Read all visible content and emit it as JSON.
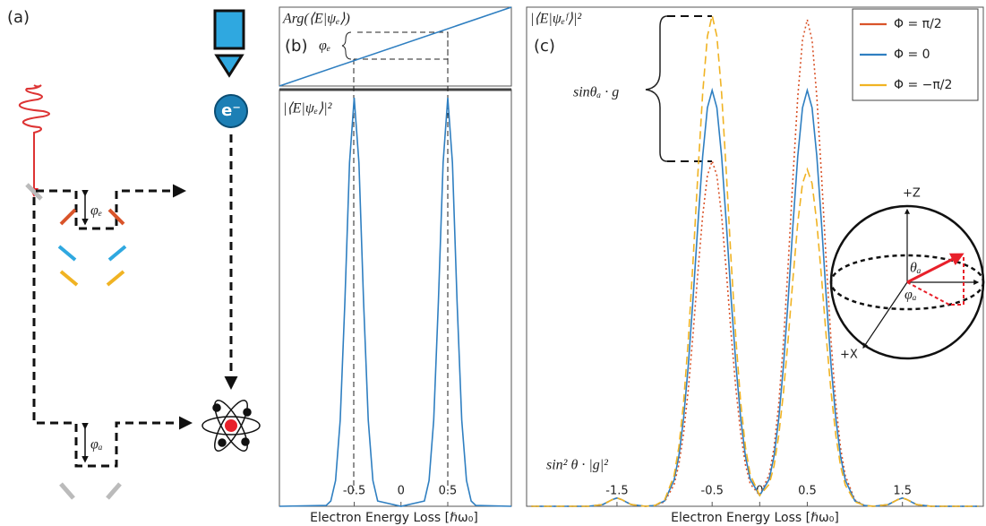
{
  "diagram": {
    "panel_label": "(a)",
    "phase_e": "φₑ",
    "phase_a": "φₐ",
    "electron": "e⁻",
    "sphere": {
      "z": "+Z",
      "x": "+X",
      "theta": "θₐ",
      "phi": "φₐ"
    }
  },
  "chart_data": [
    {
      "type": "line",
      "title": "Arg(⟨E|ψₑ⟩)",
      "panel_label": "(b)",
      "annotations": [
        "φₑ"
      ],
      "x": [
        -1.3,
        1.18
      ],
      "xlim": [
        -1.3,
        1.18
      ],
      "ylim": [
        0,
        1
      ],
      "series": [
        {
          "color": "#2f7fc1",
          "line_style": "solid",
          "values": [
            0,
            1
          ]
        }
      ]
    },
    {
      "type": "line",
      "title": "|⟨E|ψₑ⟩|²",
      "x_label": "Electron Energy Loss [ℏω₀]",
      "x": [
        -1.3,
        -0.8,
        -0.75,
        -0.7,
        -0.65,
        -0.6,
        -0.55,
        -0.5,
        -0.45,
        -0.4,
        -0.35,
        -0.3,
        -0.25,
        0,
        0.25,
        0.3,
        0.35,
        0.4,
        0.45,
        0.5,
        0.55,
        0.6,
        0.65,
        0.7,
        0.75,
        0.8,
        1.18
      ],
      "xlim": [
        -1.3,
        1.18
      ],
      "xticks": [
        -0.5,
        0,
        0.5
      ],
      "ylim": [
        0,
        1.02
      ],
      "series": [
        {
          "color": "#2f7fc1",
          "line_style": "solid",
          "values": [
            0,
            0.002,
            0.013,
            0.063,
            0.211,
            0.5,
            0.841,
            1,
            0.841,
            0.5,
            0.211,
            0.063,
            0.013,
            0,
            0.013,
            0.063,
            0.211,
            0.5,
            0.841,
            1,
            0.841,
            0.5,
            0.211,
            0.063,
            0.013,
            0.002,
            0
          ]
        }
      ]
    },
    {
      "type": "line",
      "title": "|⟨E|ψₑᶠ⟩|²",
      "panel_label": "(c)",
      "annotations": [
        "sinθₐ · g",
        "sin² θ · |g|²"
      ],
      "x_label": "Electron Energy Loss [ℏω₀]",
      "legend": "upper right",
      "x": [
        -2.4,
        -1.8,
        -1.65,
        -1.6,
        -1.55,
        -1.5,
        -1.45,
        -1.4,
        -1.35,
        -1.2,
        -1.1,
        -1.0,
        -0.9,
        -0.85,
        -0.8,
        -0.75,
        -0.7,
        -0.65,
        -0.6,
        -0.55,
        -0.5,
        -0.45,
        -0.4,
        -0.35,
        -0.3,
        -0.25,
        -0.2,
        -0.15,
        -0.1,
        0,
        0.1,
        0.15,
        0.2,
        0.25,
        0.3,
        0.35,
        0.4,
        0.45,
        0.5,
        0.55,
        0.6,
        0.65,
        0.7,
        0.75,
        0.8,
        0.85,
        0.9,
        1.0,
        1.1,
        1.2,
        1.35,
        1.4,
        1.45,
        1.5,
        1.55,
        1.6,
        1.65,
        1.8,
        2.3
      ],
      "xlim": [
        -2.45,
        2.35
      ],
      "xticks": [
        -1.5,
        -0.5,
        0,
        0.5,
        1.5
      ],
      "ylim": [
        0,
        1.2
      ],
      "series": [
        {
          "name": "Φ = π/2",
          "color": "#d9542a",
          "line_style": "dotted",
          "values": [
            0,
            0,
            0.004,
            0.01,
            0.016,
            0.02,
            0.016,
            0.01,
            0.004,
            0,
            0.002,
            0.011,
            0.052,
            0.1,
            0.175,
            0.281,
            0.415,
            0.563,
            0.698,
            0.795,
            0.83,
            0.795,
            0.698,
            0.563,
            0.415,
            0.281,
            0.175,
            0.1,
            0.054,
            0.026,
            0.076,
            0.14,
            0.247,
            0.397,
            0.585,
            0.793,
            0.984,
            1.121,
            1.17,
            1.121,
            0.984,
            0.793,
            0.585,
            0.397,
            0.247,
            0.14,
            0.074,
            0.015,
            0.002,
            0,
            0.004,
            0.01,
            0.016,
            0.02,
            0.016,
            0.01,
            0.004,
            0,
            0
          ]
        },
        {
          "name": "Φ = 0",
          "color": "#2f7fc1",
          "line_style": "solid",
          "values": [
            0,
            0,
            0.004,
            0.01,
            0.016,
            0.02,
            0.016,
            0.01,
            0.004,
            0,
            0.002,
            0.013,
            0.063,
            0.12,
            0.211,
            0.339,
            0.5,
            0.678,
            0.841,
            0.958,
            1,
            0.958,
            0.841,
            0.678,
            0.5,
            0.339,
            0.211,
            0.12,
            0.065,
            0.026,
            0.065,
            0.12,
            0.211,
            0.339,
            0.5,
            0.678,
            0.841,
            0.958,
            1,
            0.958,
            0.841,
            0.678,
            0.5,
            0.339,
            0.211,
            0.12,
            0.063,
            0.013,
            0.002,
            0,
            0.004,
            0.01,
            0.016,
            0.02,
            0.016,
            0.01,
            0.004,
            0,
            0
          ]
        },
        {
          "name": "Φ = −π/2",
          "color": "#f0b323",
          "line_style": "dashed",
          "values": [
            0,
            0,
            0.004,
            0.01,
            0.016,
            0.02,
            0.016,
            0.01,
            0.004,
            0,
            0.002,
            0.015,
            0.074,
            0.142,
            0.249,
            0.4,
            0.59,
            0.8,
            0.992,
            1.13,
            1.18,
            1.13,
            0.992,
            0.8,
            0.59,
            0.4,
            0.249,
            0.142,
            0.076,
            0.026,
            0.053,
            0.097,
            0.171,
            0.275,
            0.405,
            0.549,
            0.681,
            0.776,
            0.81,
            0.776,
            0.681,
            0.549,
            0.405,
            0.275,
            0.171,
            0.097,
            0.051,
            0.011,
            0.002,
            0,
            0.004,
            0.01,
            0.016,
            0.02,
            0.016,
            0.01,
            0.004,
            0,
            0
          ]
        }
      ]
    }
  ]
}
